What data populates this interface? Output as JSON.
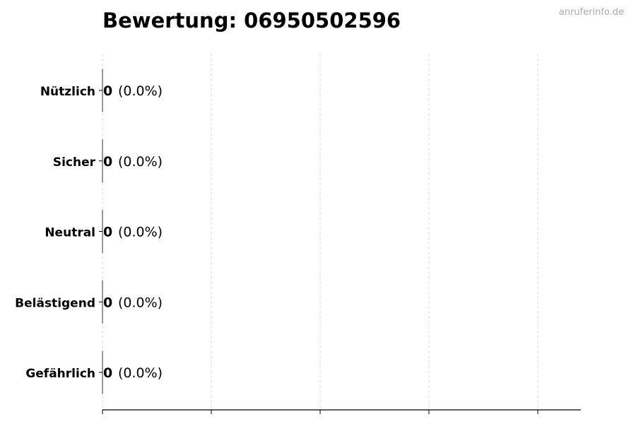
{
  "chart_data": {
    "type": "bar",
    "orientation": "horizontal",
    "title": "Bewertung: 06950502596",
    "categories": [
      "Nützlich",
      "Sicher",
      "Neutral",
      "Belästigend",
      "Gefährlich"
    ],
    "values": [
      0,
      0,
      0,
      0,
      0
    ],
    "percent_labels": [
      "(0.0%)",
      "(0.0%)",
      "(0.0%)",
      "(0.0%)",
      "(0.0%)"
    ],
    "xlabel": "",
    "ylabel": "",
    "grid": "x, dashed",
    "x_tick_labels_shown": false,
    "colors": {
      "grid": "#d9d9d9",
      "axis": "#000000",
      "bar_edge": "#333333"
    }
  },
  "watermark": "anruferinfo.de"
}
